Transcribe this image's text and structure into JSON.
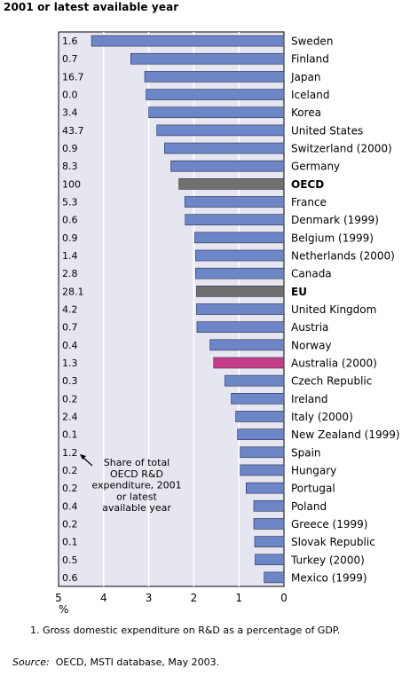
{
  "header": {
    "subtitle": "2001 or latest available year"
  },
  "annotation": {
    "lines": [
      "Share of total",
      "OECD R&D",
      "expenditure, 2001",
      "or latest",
      "available year"
    ]
  },
  "footnote": "1.   Gross domestic expenditure on R&D as a percentage of GDP.",
  "source": {
    "label": "Source:",
    "text": "OECD, MSTI database, May 2003."
  },
  "colors": {
    "bar": "#6c86c7",
    "aggregate": "#707070",
    "highlight": "#c43d86",
    "plot_bg": "#e6e6f0"
  },
  "chart_data": {
    "type": "bar",
    "orientation": "horizontal",
    "x_axis_reversed": true,
    "xlim": [
      0,
      5
    ],
    "xticks": [
      5,
      4,
      3,
      2,
      1,
      0
    ],
    "xlabel": "%",
    "grid": true,
    "categories": [
      "Sweden",
      "Finland",
      "Japan",
      "Iceland",
      "Korea",
      "United States",
      "Switzerland (2000)",
      "Germany",
      "OECD",
      "France",
      "Denmark (1999)",
      "Belgium (1999)",
      "Netherlands (2000)",
      "Canada",
      "EU",
      "United Kingdom",
      "Austria",
      "Norway",
      "Australia (2000)",
      "Czech Republic",
      "Ireland",
      "Italy (2000)",
      "New Zealand (1999)",
      "Spain",
      "Hungary",
      "Portugal",
      "Poland",
      "Greece (1999)",
      "Slovak Republic",
      "Turkey (2000)",
      "Mexico (1999)"
    ],
    "values": [
      4.27,
      3.4,
      3.09,
      3.06,
      3.0,
      2.82,
      2.65,
      2.51,
      2.33,
      2.2,
      2.19,
      1.98,
      1.96,
      1.96,
      1.94,
      1.94,
      1.93,
      1.64,
      1.56,
      1.31,
      1.17,
      1.07,
      1.03,
      0.97,
      0.97,
      0.84,
      0.67,
      0.67,
      0.65,
      0.64,
      0.44
    ],
    "share_values": [
      "1.6",
      "0.7",
      "16.7",
      "0.0",
      "3.4",
      "43.7",
      "0.9",
      "8.3",
      "100",
      "5.3",
      "0.6",
      "0.9",
      "1.4",
      "2.8",
      "28.1",
      "4.2",
      "0.7",
      "0.4",
      "1.3",
      "0.3",
      "0.2",
      "2.4",
      "0.1",
      "1.2",
      "0.2",
      "0.2",
      "0.4",
      "0.2",
      "0.1",
      "0.5",
      "0.6"
    ],
    "bar_types": [
      "country",
      "country",
      "country",
      "country",
      "country",
      "country",
      "country",
      "country",
      "aggregate",
      "country",
      "country",
      "country",
      "country",
      "country",
      "aggregate",
      "country",
      "country",
      "country",
      "highlight",
      "country",
      "country",
      "country",
      "country",
      "country",
      "country",
      "country",
      "country",
      "country",
      "country",
      "country",
      "country"
    ],
    "bold_categories": [
      "OECD",
      "EU"
    ]
  }
}
